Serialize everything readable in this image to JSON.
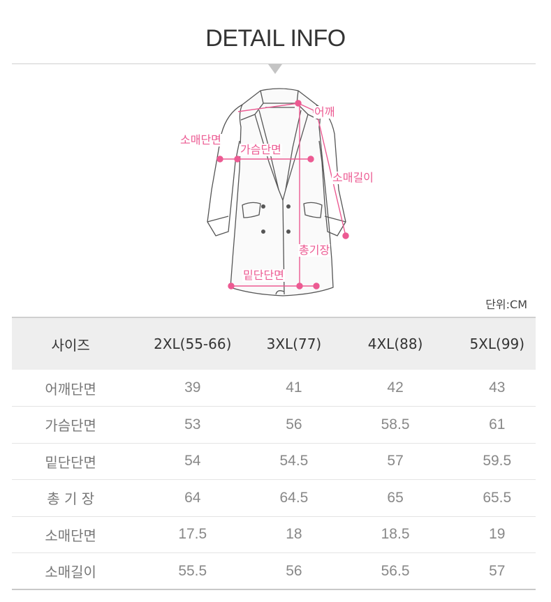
{
  "header": {
    "title": "DETAIL INFO"
  },
  "figure": {
    "labels": {
      "shoulder": "어깨",
      "sleeve_width": "소매단면",
      "chest": "가슴단면",
      "sleeve_length": "소매길이",
      "total_length": "총기장",
      "hem": "밑단단면"
    },
    "accent_color": "#ec5a92"
  },
  "unit_text": "단위:CM",
  "table": {
    "headers": [
      "사이즈",
      "2XL(55-66)",
      "3XL(77)",
      "4XL(88)",
      "5XL(99)"
    ],
    "rows": [
      {
        "label": "어깨단면",
        "values": [
          "39",
          "41",
          "42",
          "43"
        ]
      },
      {
        "label": "가슴단면",
        "values": [
          "53",
          "56",
          "58.5",
          "61"
        ]
      },
      {
        "label": "밑단단면",
        "values": [
          "54",
          "54.5",
          "57",
          "59.5"
        ]
      },
      {
        "label": "총 기 장",
        "values": [
          "64",
          "64.5",
          "65",
          "65.5"
        ]
      },
      {
        "label": "소매단면",
        "values": [
          "17.5",
          "18",
          "18.5",
          "19"
        ]
      },
      {
        "label": "소매길이",
        "values": [
          "55.5",
          "56",
          "56.5",
          "57"
        ]
      }
    ]
  }
}
